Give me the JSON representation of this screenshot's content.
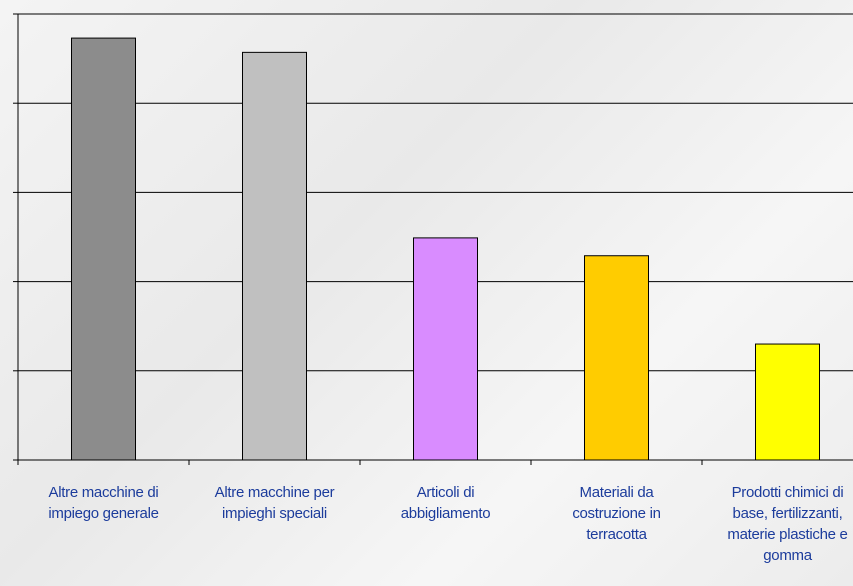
{
  "chart_data": {
    "type": "bar",
    "categories": [
      "Altre macchine di impiego generale",
      "Altre macchine per impieghi speciali",
      "Articoli di abbigliamento",
      "Materiali da costruzione in terracotta",
      "Prodotti chimici di base, fertilizzanti, materie plastiche e gomma"
    ],
    "values": [
      4.73,
      4.57,
      2.49,
      2.29,
      1.3
    ],
    "colors": [
      "#8c8c8c",
      "#c0c0c0",
      "#d98cff",
      "#ffcc00",
      "#ffff00"
    ],
    "ylim": [
      0,
      5
    ],
    "yticks": [
      0,
      1,
      2,
      3,
      4,
      5
    ],
    "grid": true
  }
}
